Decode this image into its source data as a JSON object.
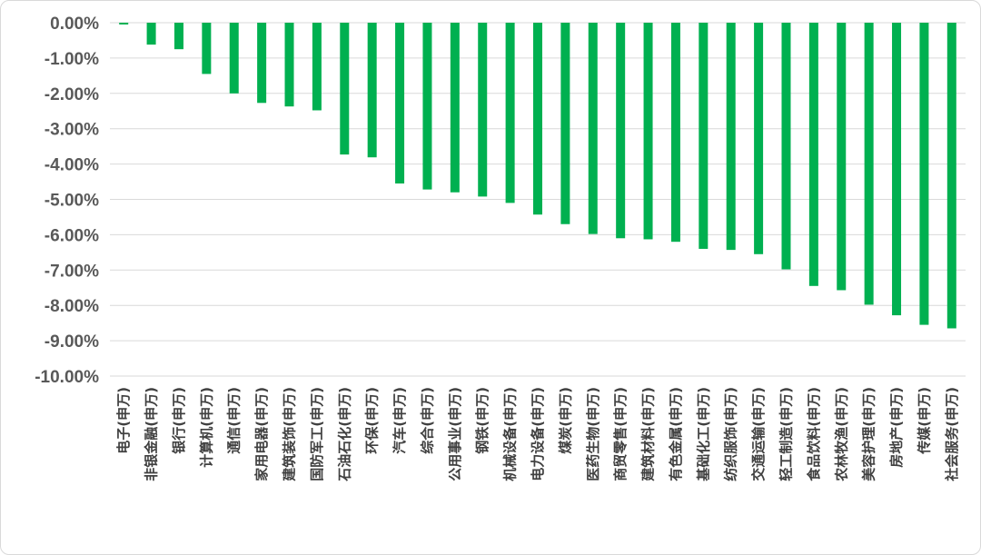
{
  "chart_data": {
    "type": "bar",
    "categories": [
      "电子(申万)",
      "非银金融(申万)",
      "银行(申万)",
      "计算机(申万)",
      "通信(申万)",
      "家用电器(申万)",
      "建筑装饰(申万)",
      "国防军工(申万)",
      "石油石化(申万)",
      "环保(申万)",
      "汽车(申万)",
      "综合(申万)",
      "公用事业(申万)",
      "钢铁(申万)",
      "机械设备(申万)",
      "电力设备(申万)",
      "煤炭(申万)",
      "医药生物(申万)",
      "商贸零售(申万)",
      "建筑材料(申万)",
      "有色金属(申万)",
      "基础化工(申万)",
      "纺织服饰(申万)",
      "交通运输(申万)",
      "轻工制造(申万)",
      "食品饮料(申万)",
      "农林牧渔(申万)",
      "美容护理(申万)",
      "房地产(申万)",
      "传媒(申万)",
      "社会服务(申万)"
    ],
    "values": [
      -0.05,
      -0.62,
      -0.75,
      -1.45,
      -2.0,
      -2.27,
      -2.37,
      -2.48,
      -3.73,
      -3.81,
      -4.55,
      -4.72,
      -4.8,
      -4.92,
      -5.1,
      -5.43,
      -5.7,
      -5.98,
      -6.1,
      -6.13,
      -6.2,
      -6.4,
      -6.43,
      -6.55,
      -6.98,
      -7.45,
      -7.57,
      -7.98,
      -8.28,
      -8.55,
      -8.65
    ],
    "ylim": [
      -10,
      0
    ],
    "yticks": [
      0,
      -1,
      -2,
      -3,
      -4,
      -5,
      -6,
      -7,
      -8,
      -9,
      -10
    ],
    "ytick_labels": [
      "0.00%",
      "-1.00%",
      "-2.00%",
      "-3.00%",
      "-4.00%",
      "-5.00%",
      "-6.00%",
      "-7.00%",
      "-8.00%",
      "-9.00%",
      "-10.00%"
    ],
    "title": "",
    "xlabel": "",
    "ylabel": "",
    "grid": true,
    "legend": "none",
    "bar_color": "#00b050"
  }
}
